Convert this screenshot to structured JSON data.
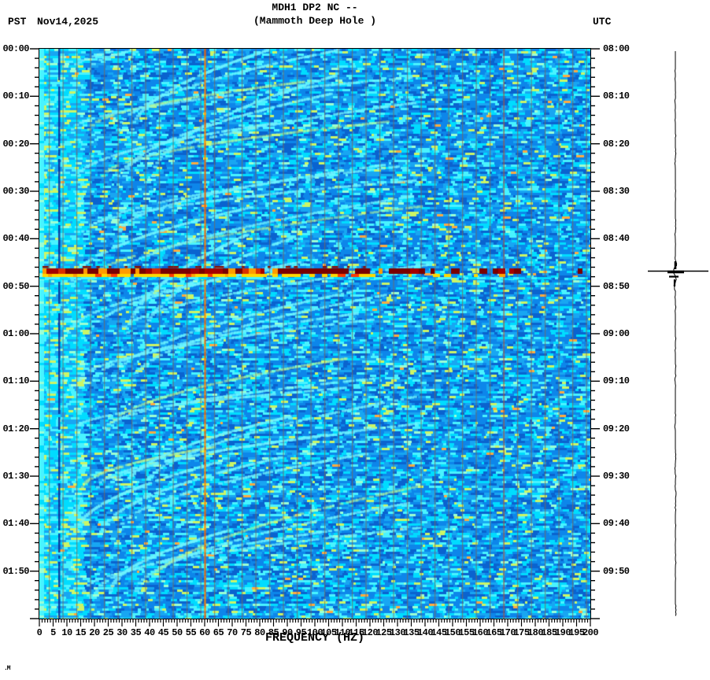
{
  "header": {
    "title_line1": "MDH1 DP2 NC --",
    "title_line2": "(Mammoth Deep Hole )",
    "left_timezone": "PST",
    "date": "Nov14,2025",
    "right_timezone": "UTC"
  },
  "chart_data": {
    "type": "heatmap",
    "subtype": "seismic-spectrogram",
    "title": "MDH1 DP2 NC -- (Mammoth Deep Hole )",
    "xlabel": "FREQUENCY (HZ)",
    "x_range_hz": [
      0,
      200
    ],
    "x_major_tick_interval_hz": 5,
    "x_minor_tick_interval_hz": 1,
    "x_tick_labels": [
      "0",
      "5",
      "10",
      "15",
      "20",
      "25",
      "30",
      "35",
      "40",
      "45",
      "50",
      "55",
      "60",
      "65",
      "70",
      "75",
      "80",
      "85",
      "90",
      "95",
      "100",
      "105",
      "110",
      "115",
      "120",
      "125",
      "130",
      "135",
      "140",
      "145",
      "150",
      "155",
      "160",
      "165",
      "170",
      "175",
      "180",
      "185",
      "190",
      "195",
      "200"
    ],
    "left_time_axis": {
      "timezone": "PST",
      "start": "00:00",
      "end": "02:00",
      "major_tick_interval_min": 10,
      "minor_tick_interval_min": 2,
      "tick_labels": [
        "00:00",
        "00:10",
        "00:20",
        "00:30",
        "00:40",
        "00:50",
        "01:00",
        "01:10",
        "01:20",
        "01:30",
        "01:40",
        "01:50"
      ]
    },
    "right_time_axis": {
      "timezone": "UTC",
      "start": "08:00",
      "end": "10:00",
      "major_tick_interval_min": 10,
      "minor_tick_interval_min": 2,
      "tick_labels": [
        "08:00",
        "08:10",
        "08:20",
        "08:30",
        "08:40",
        "08:50",
        "09:00",
        "09:10",
        "09:20",
        "09:30",
        "09:40",
        "09:50"
      ]
    },
    "event": {
      "time_pst": "00:47",
      "time_utc": "08:47",
      "minutes_from_start": 47,
      "description": "broadband high-amplitude arrival spanning 0-200 Hz, strongest below 110 Hz",
      "band_peak_color": "#7a0000",
      "band_under_color": "#ffd900"
    },
    "special_frequencies_hz": {
      "grid_line_interval_hz": 5,
      "mains_noise_line_hz": 60,
      "dark_column_hz": 7,
      "faint_red_line_hz": 168
    },
    "background_texture": "blocky blue/cyan noise with repeating upward-gliding cyan harmonic arcs roughly every 10 minutes, brighter energy below 5 Hz",
    "palette": {
      "blue_dark": "#0a63cf",
      "blue_mid": "#0d86ea",
      "blue_light": "#18a6f2",
      "cyan": "#00dcff",
      "cyan_bright": "#49f3ff",
      "pale_green": "#9cffd2",
      "yellow_green": "#ccf566",
      "orange": "#ffab40",
      "grid_gray": "#7a6a58",
      "mains_orange": "#ff8800"
    }
  },
  "trace_panel": {
    "description": "helicorder-style vertical trace, time running downward",
    "event_spike_time_pst": "00:47",
    "line_color": "#000000"
  },
  "footer": {
    "watermark": ".M"
  }
}
